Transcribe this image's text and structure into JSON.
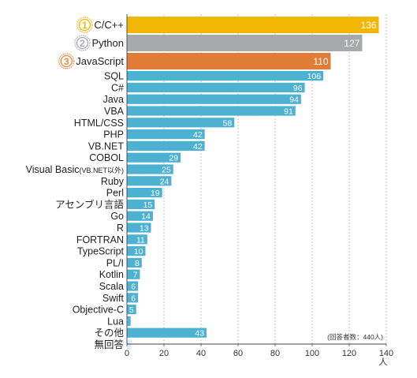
{
  "colors": {
    "gold": "#f2b705",
    "silver": "#a8a9ab",
    "bronze": "#e07c35",
    "bar": "#4db1d1",
    "gold_medal": "#f2b705",
    "silver_medal": "#a8a9ab",
    "bronze_medal": "#e58a3e"
  },
  "note": "(回答者数：440人)",
  "unit": "人",
  "chart_data": {
    "type": "bar",
    "orientation": "horizontal",
    "categories": [
      "C/C++",
      "Python",
      "JavaScript",
      "SQL",
      "C#",
      "Java",
      "VBA",
      "HTML/CSS",
      "PHP",
      "VB.NET",
      "COBOL",
      "Visual Basic",
      "Ruby",
      "Perl",
      "アセンブリ言語",
      "Go",
      "R",
      "FORTRAN",
      "TypeScript",
      "PL/I",
      "Kotlin",
      "Scala",
      "Swift",
      "Objective-C",
      "Lua",
      "その他",
      "無回答"
    ],
    "category_suffixes": {
      "Visual Basic": "(VB.NET以外)"
    },
    "values": [
      136,
      127,
      110,
      106,
      96,
      94,
      91,
      58,
      42,
      42,
      29,
      25,
      24,
      19,
      15,
      14,
      13,
      11,
      10,
      8,
      7,
      6,
      6,
      5,
      2,
      43,
      1
    ],
    "ranks": [
      "1",
      "2",
      "3"
    ],
    "xlim": [
      0,
      140
    ],
    "xticks": [
      "0",
      "20",
      "40",
      "60",
      "80",
      "100",
      "120",
      "140"
    ],
    "xlabel": "人",
    "grid": "vertical dashed"
  }
}
